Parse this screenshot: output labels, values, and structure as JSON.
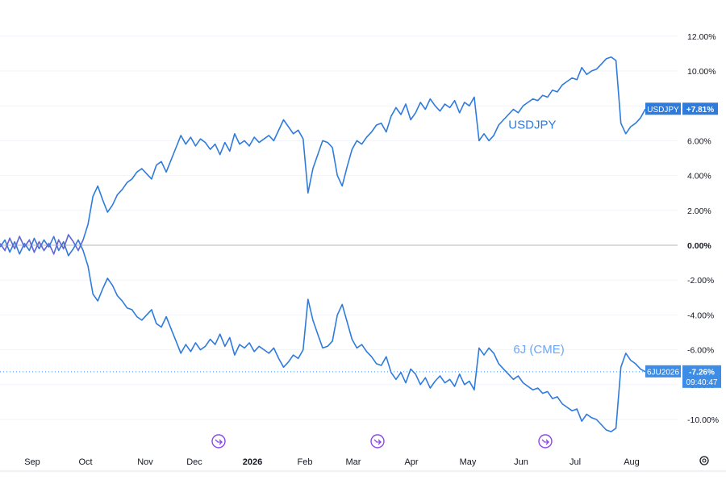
{
  "chart_data": {
    "type": "line",
    "y_unit": "%",
    "ylim": [
      -11.5,
      13.0
    ],
    "y_ticks": [
      "12.00%",
      "10.00%",
      "8.00%",
      "6.00%",
      "4.00%",
      "2.00%",
      "0.00%",
      "-2.00%",
      "-4.00%",
      "-6.00%",
      "-8.00%",
      "-10.00%"
    ],
    "y_tick_values": [
      12,
      10,
      8,
      6,
      4,
      2,
      0,
      -2,
      -4,
      -6,
      -8,
      -10
    ],
    "x_ticks": [
      {
        "label": "Sep",
        "bold": false
      },
      {
        "label": "Oct",
        "bold": false
      },
      {
        "label": "Nov",
        "bold": false
      },
      {
        "label": "Dec",
        "bold": false
      },
      {
        "label": "2026",
        "bold": true
      },
      {
        "label": "Feb",
        "bold": false
      },
      {
        "label": "Mar",
        "bold": false
      },
      {
        "label": "Apr",
        "bold": false
      },
      {
        "label": "May",
        "bold": false
      },
      {
        "label": "Jun",
        "bold": false
      },
      {
        "label": "Jul",
        "bold": false
      },
      {
        "label": "Aug",
        "bold": false
      }
    ],
    "x_tick_index": [
      6,
      17,
      28,
      38,
      49,
      60,
      70,
      81,
      92,
      102,
      113,
      124
    ],
    "grid": true,
    "zero_line": true,
    "series": [
      {
        "name": "USDJPY",
        "color": "#2f7bdc",
        "last_value_label": "+7.81%",
        "tag_label": "USDJPY",
        "values": [
          0.1,
          -0.3,
          0.4,
          -0.2,
          0.5,
          -0.1,
          0.3,
          -0.4,
          0.2,
          -0.3,
          0.1,
          -0.5,
          0.3,
          -0.2,
          0.6,
          0.2,
          -0.3,
          0.3,
          1.2,
          2.8,
          3.4,
          2.6,
          1.9,
          2.3,
          2.9,
          3.2,
          3.6,
          3.8,
          4.2,
          4.4,
          4.1,
          3.8,
          4.6,
          4.8,
          4.2,
          4.9,
          5.6,
          6.3,
          5.8,
          6.2,
          5.7,
          6.1,
          5.9,
          5.5,
          5.8,
          5.2,
          5.9,
          5.4,
          6.4,
          5.8,
          6.0,
          5.7,
          6.2,
          5.9,
          6.1,
          6.3,
          6.0,
          6.6,
          7.2,
          6.8,
          6.4,
          6.6,
          6.1,
          3.0,
          4.4,
          5.2,
          6.0,
          5.9,
          5.6,
          4.0,
          3.4,
          4.5,
          5.5,
          6.0,
          5.8,
          6.2,
          6.5,
          6.9,
          7.0,
          6.5,
          7.4,
          7.9,
          7.5,
          8.1,
          7.2,
          7.6,
          8.2,
          7.8,
          8.4,
          8.0,
          7.7,
          8.1,
          7.9,
          8.3,
          7.6,
          8.2,
          8.0,
          8.5,
          6.0,
          6.4,
          6.0,
          6.3,
          6.9,
          7.2,
          7.5,
          7.8,
          7.6,
          8.0,
          8.2,
          8.4,
          8.3,
          8.6,
          8.5,
          8.9,
          8.8,
          9.2,
          9.4,
          9.6,
          9.5,
          10.2,
          9.8,
          10.0,
          10.1,
          10.4,
          10.7,
          10.8,
          10.6,
          7.0,
          6.4,
          6.8,
          7.0,
          7.3,
          7.81
        ],
        "label_x_index": 104,
        "label_y_value": 6.7
      },
      {
        "name": "6J (CME)",
        "color": "#2f7bdc",
        "label_color": "#6ea6f5",
        "last_value_label": "-7.26%",
        "tag_label": "6JU2026",
        "extra_label": "09:40:47",
        "values": [
          -0.1,
          0.3,
          -0.4,
          0.2,
          -0.5,
          0.1,
          -0.3,
          0.4,
          -0.2,
          0.3,
          -0.1,
          0.5,
          -0.3,
          0.2,
          -0.6,
          -0.2,
          0.3,
          -0.3,
          -1.2,
          -2.8,
          -3.2,
          -2.5,
          -1.9,
          -2.3,
          -2.9,
          -3.2,
          -3.6,
          -3.7,
          -4.1,
          -4.3,
          -4.0,
          -3.7,
          -4.5,
          -4.7,
          -4.1,
          -4.8,
          -5.5,
          -6.2,
          -5.7,
          -6.1,
          -5.6,
          -6.0,
          -5.8,
          -5.4,
          -5.7,
          -5.1,
          -5.8,
          -5.3,
          -6.3,
          -5.7,
          -5.9,
          -5.6,
          -6.1,
          -5.8,
          -6.0,
          -6.2,
          -5.9,
          -6.5,
          -7.0,
          -6.7,
          -6.3,
          -6.5,
          -6.0,
          -3.1,
          -4.3,
          -5.1,
          -5.9,
          -5.8,
          -5.5,
          -4.0,
          -3.4,
          -4.4,
          -5.4,
          -5.9,
          -5.7,
          -6.1,
          -6.4,
          -6.8,
          -6.9,
          -6.4,
          -7.3,
          -7.7,
          -7.3,
          -7.9,
          -7.1,
          -7.4,
          -8.0,
          -7.6,
          -8.2,
          -7.8,
          -7.5,
          -7.9,
          -7.7,
          -8.1,
          -7.4,
          -8.0,
          -7.8,
          -8.3,
          -5.9,
          -6.3,
          -5.9,
          -6.2,
          -6.8,
          -7.1,
          -7.4,
          -7.7,
          -7.5,
          -7.9,
          -8.1,
          -8.3,
          -8.2,
          -8.5,
          -8.4,
          -8.8,
          -8.7,
          -9.1,
          -9.3,
          -9.5,
          -9.4,
          -10.1,
          -9.7,
          -9.9,
          -10.0,
          -10.3,
          -10.6,
          -10.7,
          -10.5,
          -7.0,
          -6.2,
          -6.6,
          -6.8,
          -7.1,
          -7.26
        ],
        "label_x_index": 105,
        "label_y_value": -6.2
      }
    ],
    "axis_color": "#e0e3eb",
    "tag_color": "#2f7bdc",
    "tag_color_2": "#3d8de6"
  }
}
